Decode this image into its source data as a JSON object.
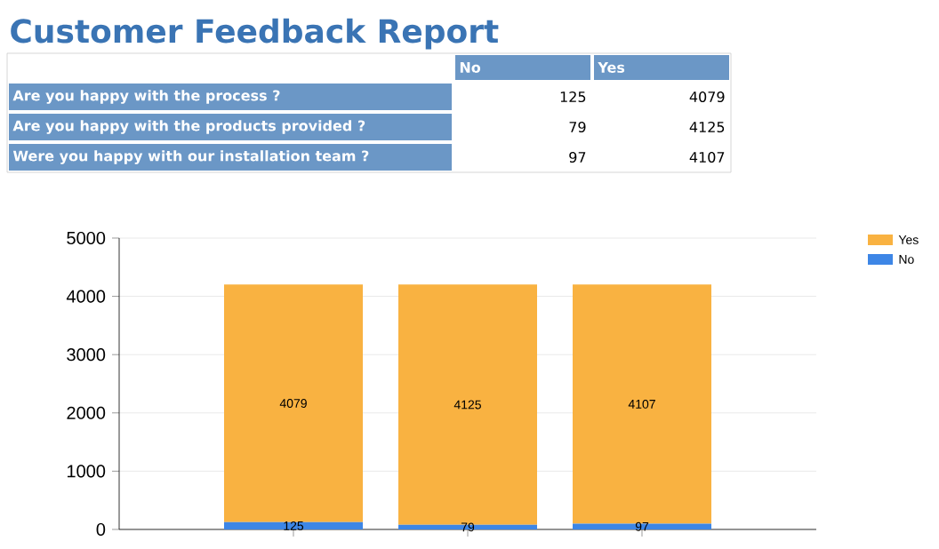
{
  "chart_data": {
    "type": "bar",
    "title": "Customer Feedback Report",
    "categories": [
      null,
      null,
      null
    ],
    "annotations": [
      "Are you happy with the process ?",
      "Are you happy with the products provided ?",
      "Were you happy with our installation team ?"
    ],
    "series": [
      {
        "name": "No",
        "color": "#3d86e6",
        "values": [
          125,
          79,
          97
        ],
        "value_labels": [
          "125",
          "79",
          "97"
        ]
      },
      {
        "name": "Yes",
        "color": "#f9b241",
        "values": [
          4079,
          4125,
          4107
        ],
        "value_labels": [
          "4079",
          "4125",
          "4107"
        ]
      }
    ],
    "stacked": true,
    "ylim": [
      0,
      5000
    ],
    "yticks": [
      0,
      1000,
      2000,
      3000,
      4000,
      5000
    ],
    "grid": "y",
    "legend": "right",
    "tick_labels": "y"
  }
}
